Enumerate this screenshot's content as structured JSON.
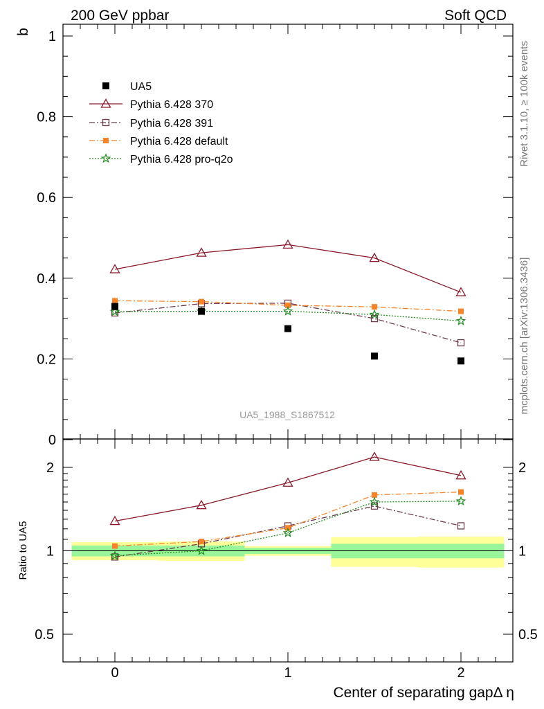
{
  "header": {
    "left": "200 GeV ppbar",
    "right": "Soft QCD"
  },
  "side_labels": {
    "rivet": "Rivet 3.1.10, ≥ 100k events",
    "source": "mcplots.cern.ch [arXiv:1306.3436]"
  },
  "chart_data": [
    {
      "panel": "main",
      "type": "scatter",
      "title": "",
      "watermark": "UA5_1988_S1867512",
      "ylabel": "b",
      "xlabel": "",
      "xlim": [
        -0.3,
        2.3
      ],
      "ylim": [
        0,
        1.05
      ],
      "xticks": [
        0,
        1,
        2
      ],
      "yticks": [
        0,
        0.2,
        0.4,
        0.6,
        0.8,
        1
      ],
      "ytick_labels": [
        "0",
        "0.2",
        "0.4",
        "0.6",
        "0.8",
        "1"
      ],
      "legend_position": "top-left",
      "x": [
        0,
        0.5,
        1,
        1.5,
        2
      ],
      "series": [
        {
          "name": "UA5",
          "color": "#000000",
          "marker": "square-filled",
          "line": "none",
          "values": [
            0.33,
            0.318,
            0.275,
            0.207,
            0.195
          ]
        },
        {
          "name": "Pythia 6.428 370",
          "color": "#8b1a2b",
          "marker": "triangle-open",
          "line": "solid",
          "values": [
            0.422,
            0.463,
            0.483,
            0.45,
            0.365
          ]
        },
        {
          "name": "Pythia 6.428 391",
          "color": "#6b3a4c",
          "marker": "square-open",
          "line": "dashdot",
          "values": [
            0.314,
            0.337,
            0.338,
            0.3,
            0.24
          ]
        },
        {
          "name": "Pythia 6.428 default",
          "color": "#f5842a",
          "marker": "square-filled-small",
          "line": "dashdot",
          "values": [
            0.344,
            0.342,
            0.333,
            0.329,
            0.318
          ]
        },
        {
          "name": "Pythia 6.428 pro-q2o",
          "color": "#1f8c1f",
          "marker": "star-open",
          "line": "dotted",
          "values": [
            0.317,
            0.318,
            0.318,
            0.31,
            0.294
          ]
        }
      ]
    },
    {
      "panel": "ratio",
      "type": "line",
      "title": "",
      "ylabel": "Ratio to UA5",
      "xlabel": "Center of separating gapΔ η",
      "xlim": [
        -0.3,
        2.3
      ],
      "ylim": [
        0.42,
        2.33
      ],
      "log_scale_y": true,
      "xticks": [
        0,
        1,
        2
      ],
      "xtick_labels": [
        "0",
        "1",
        "2"
      ],
      "yticks": [
        0.5,
        1,
        2
      ],
      "ytick_labels": [
        "0.5",
        "1",
        "2"
      ],
      "reference_line": 1,
      "x": [
        0,
        0.5,
        1,
        1.5,
        2
      ],
      "bands": [
        {
          "x_range": [
            -0.25,
            0.25
          ],
          "green": [
            0.955,
            1.045
          ],
          "yellow": [
            0.925,
            1.075
          ]
        },
        {
          "x_range": [
            0.25,
            0.75
          ],
          "green": [
            0.955,
            1.045
          ],
          "yellow": [
            0.92,
            1.08
          ]
        },
        {
          "x_range": [
            0.75,
            1.25
          ],
          "green": [
            0.975,
            1.025
          ],
          "yellow": [
            0.96,
            1.04
          ]
        },
        {
          "x_range": [
            1.25,
            1.75
          ],
          "green": [
            0.94,
            1.06
          ],
          "yellow": [
            0.875,
            1.12
          ]
        },
        {
          "x_range": [
            1.75,
            2.25
          ],
          "green": [
            0.94,
            1.06
          ],
          "yellow": [
            0.87,
            1.125
          ]
        }
      ],
      "series": [
        {
          "name": "Pythia 6.428 370",
          "color": "#8b1a2b",
          "marker": "triangle-open",
          "line": "solid",
          "values": [
            1.28,
            1.46,
            1.76,
            2.18,
            1.87
          ]
        },
        {
          "name": "Pythia 6.428 391",
          "color": "#6b3a4c",
          "marker": "square-open",
          "line": "dashdot",
          "values": [
            0.95,
            1.06,
            1.23,
            1.45,
            1.23
          ]
        },
        {
          "name": "Pythia 6.428 default",
          "color": "#f5842a",
          "marker": "square-filled-small",
          "line": "dashdot",
          "values": [
            1.04,
            1.08,
            1.21,
            1.59,
            1.63
          ]
        },
        {
          "name": "Pythia 6.428 pro-q2o",
          "color": "#1f8c1f",
          "marker": "star-open",
          "line": "dotted",
          "values": [
            0.96,
            1.0,
            1.16,
            1.5,
            1.51
          ]
        }
      ]
    }
  ]
}
